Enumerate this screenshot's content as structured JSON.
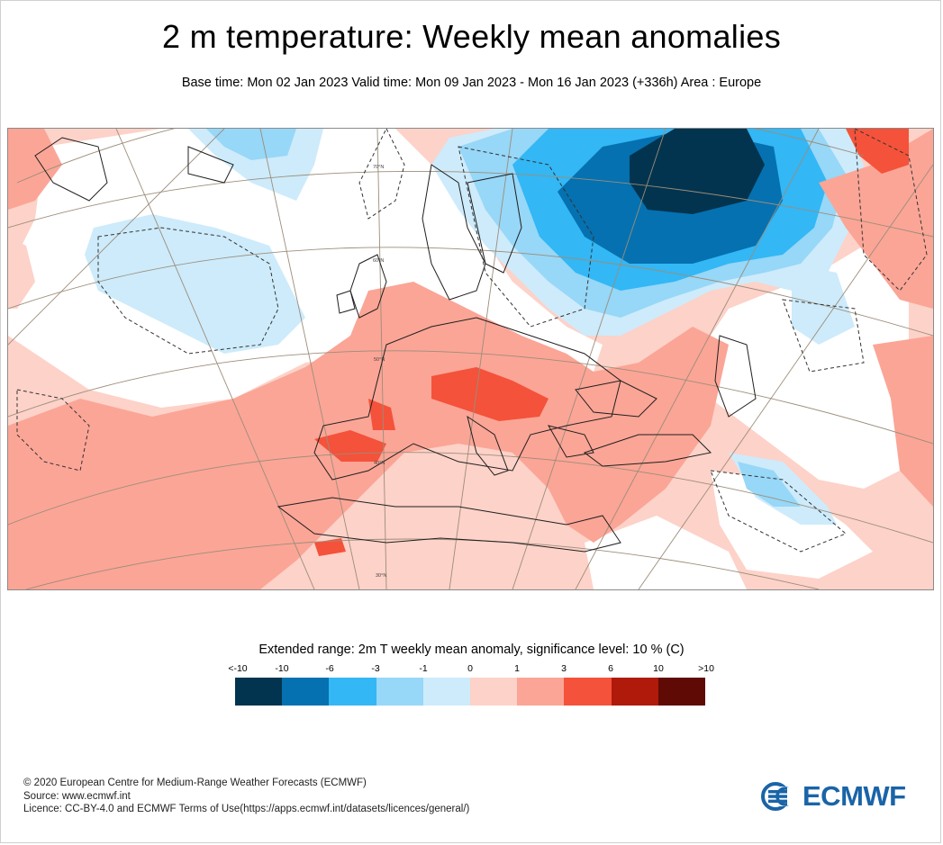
{
  "title": "2 m temperature: Weekly mean anomalies",
  "subtitle": "Base time: Mon 02 Jan 2023 Valid time: Mon 09 Jan 2023 - Mon 16 Jan 2023 (+336h) Area : Europe",
  "map": {
    "latitude_labels": [
      "70°N",
      "60°N",
      "50°N",
      "40°N",
      "30°N"
    ]
  },
  "legend": {
    "title": "Extended range: 2m T weekly mean anomaly, significance level: 10 % (C)",
    "ticks": [
      "<-10",
      "-10",
      "-6",
      "-3",
      "-1",
      "0",
      "1",
      "3",
      "6",
      "10",
      ">10"
    ],
    "colors": [
      "#02344f",
      "#0571b0",
      "#33b7f5",
      "#97d7f7",
      "#cdebfb",
      "#fdd2c8",
      "#fba596",
      "#f4523a",
      "#b01a0a",
      "#5f0a05"
    ]
  },
  "footer": {
    "line1": "© 2020 European Centre for Medium-Range Weather Forecasts (ECMWF)",
    "line2": "Source: www.ecmwf.int",
    "line3": "Licence: CC-BY-4.0 and ECMWF Terms of Use(https://apps.ecmwf.int/datasets/licences/general/)"
  },
  "logo": {
    "text": "ECMWF",
    "color": "#1a64a8"
  }
}
